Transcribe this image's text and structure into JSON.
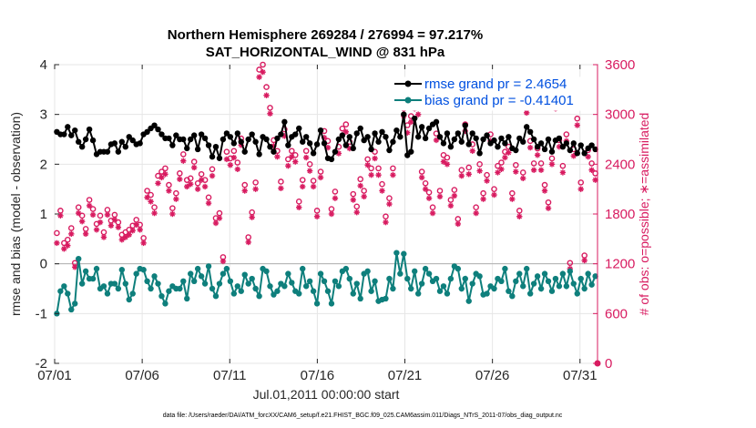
{
  "chart_data": {
    "type": "line",
    "title_line1": "Northern Hemisphere 269284 / 276994 = 97.217%",
    "title_line2": "SAT_HORIZONTAL_WIND @ 831 hPa",
    "xlabel": "Jul.01,2011 00:00:00 start",
    "ylabel_left": "rmse and bias (model - observation)",
    "ylabel_right": "# of obs: o=possible; ∗=assimilated",
    "footer": "data file: /Users/raeder/DAI/ATM_forcXX/CAM6_setup/f.e21.FHIST_BGC.f09_025.CAM6assim.011/Diags_NTrS_2011-07/obs_diag_output.nc",
    "x_ticks": [
      "07/01",
      "07/06",
      "07/11",
      "07/16",
      "07/21",
      "07/26",
      "07/31"
    ],
    "x_tick_days": [
      0,
      5,
      10,
      15,
      20,
      25,
      30
    ],
    "xlim": [
      0,
      31
    ],
    "ylim_left": [
      -2,
      4
    ],
    "y_ticks_left": [
      "-2",
      "-1",
      "0",
      "1",
      "2",
      "3",
      "4"
    ],
    "ylim_right": [
      0,
      3600
    ],
    "y_ticks_right": [
      "0",
      "600",
      "1200",
      "1800",
      "2400",
      "3000",
      "3600"
    ],
    "series": [
      {
        "name": "rmse grand",
        "legend_label": "rmse grand pr = 2.4654",
        "color": "#000000",
        "marker": "filled-circle",
        "values": [
          2.65,
          2.6,
          2.6,
          2.75,
          2.58,
          2.68,
          2.45,
          2.35,
          2.5,
          2.7,
          2.48,
          2.2,
          2.25,
          2.25,
          2.25,
          2.4,
          2.42,
          2.25,
          2.45,
          2.35,
          2.55,
          2.48,
          2.4,
          2.42,
          2.6,
          2.65,
          2.72,
          2.78,
          2.7,
          2.6,
          2.52,
          2.52,
          2.38,
          2.58,
          2.5,
          2.5,
          2.32,
          2.5,
          2.58,
          2.3,
          2.6,
          2.52,
          2.38,
          2.15,
          2.35,
          2.12,
          2.5,
          2.62,
          2.55,
          2.42,
          2.62,
          2.45,
          2.25,
          2.5,
          2.6,
          2.45,
          2.2,
          2.55,
          2.5,
          2.35,
          2.25,
          2.52,
          2.6,
          2.85,
          2.38,
          2.55,
          2.6,
          2.72,
          2.45,
          2.55,
          2.42,
          2.22,
          2.4,
          2.68,
          2.42,
          2.12,
          2.1,
          2.25,
          2.5,
          2.58,
          2.38,
          2.55,
          2.32,
          2.62,
          2.72,
          2.48,
          2.55,
          2.3,
          2.62,
          2.45,
          2.65,
          2.55,
          2.28,
          2.45,
          2.68,
          2.55,
          3.0,
          2.18,
          2.25,
          2.92,
          2.55,
          2.75,
          2.52,
          2.72,
          2.8,
          2.85,
          2.55,
          2.42,
          2.62,
          2.35,
          2.5,
          2.62,
          2.45,
          2.78,
          2.4,
          2.62,
          2.52,
          2.22,
          2.5,
          2.58,
          2.42,
          2.48,
          2.35,
          2.52,
          2.42,
          2.55,
          2.32,
          2.28,
          2.52,
          2.45,
          2.75,
          2.65,
          2.5,
          2.35,
          2.42,
          2.3,
          2.5,
          2.25,
          2.48,
          2.52,
          2.35,
          2.42,
          2.28,
          2.42,
          2.22,
          2.38,
          2.22,
          2.32,
          2.38,
          2.3
        ]
      },
      {
        "name": "bias grand",
        "legend_label": "bias grand pr = -0.41401",
        "color": "#0e7f7c",
        "marker": "filled-circle",
        "values": [
          -1.0,
          -0.55,
          -0.45,
          -0.6,
          -0.92,
          -0.8,
          0.1,
          -0.4,
          -0.15,
          -0.3,
          -0.3,
          -0.1,
          -0.5,
          -0.45,
          -0.6,
          -0.4,
          -0.4,
          -0.5,
          -0.12,
          -0.4,
          -0.72,
          -0.6,
          -0.2,
          -0.1,
          -0.12,
          -0.35,
          -0.5,
          -0.25,
          -0.4,
          -0.65,
          -0.8,
          -0.55,
          -0.45,
          -0.5,
          -0.5,
          -0.35,
          -0.7,
          -0.2,
          -0.35,
          -0.1,
          -0.25,
          -0.4,
          -0.05,
          -0.5,
          -0.65,
          -0.4,
          -0.2,
          -0.1,
          -0.35,
          -0.6,
          -0.45,
          -0.55,
          -0.22,
          -0.4,
          -0.3,
          -0.5,
          -0.65,
          -0.1,
          -0.15,
          -0.45,
          -0.62,
          -0.55,
          -0.4,
          -0.45,
          -0.2,
          -0.38,
          -0.55,
          -0.6,
          -0.1,
          -0.45,
          -0.35,
          -0.55,
          -0.8,
          -0.2,
          -0.35,
          -0.55,
          -0.8,
          -0.35,
          -0.45,
          -0.15,
          -0.1,
          -0.3,
          -0.6,
          -0.4,
          -0.7,
          -0.2,
          -0.15,
          -0.55,
          -0.35,
          -0.75,
          -0.72,
          -0.7,
          -0.3,
          -0.5,
          0.22,
          -0.2,
          0.2,
          -0.3,
          -0.5,
          -0.15,
          -0.6,
          -0.4,
          -0.1,
          -0.2,
          -0.35,
          -0.3,
          -0.55,
          -0.45,
          -0.6,
          -0.3,
          -0.05,
          -0.1,
          -0.5,
          -0.3,
          -0.75,
          -0.4,
          -0.2,
          -0.25,
          -0.62,
          -0.6,
          -0.45,
          -0.5,
          -0.3,
          -0.35,
          -0.1,
          -0.55,
          -0.65,
          -0.35,
          -0.2,
          -0.45,
          -0.1,
          -0.6,
          -0.4,
          -0.25,
          -0.5,
          -0.2,
          -0.35,
          -0.55,
          -0.3,
          -0.45,
          -0.2,
          -0.45,
          -0.15,
          -0.4,
          -0.6,
          -0.3,
          -0.5,
          -0.2,
          -0.42,
          -0.25
        ]
      }
    ],
    "obs_series": {
      "color": "#d81b60",
      "possible_symbol": "o",
      "assimilated_symbol": "*",
      "possible": [
        1570,
        1840,
        1450,
        1490,
        1630,
        1210,
        1880,
        1780,
        1620,
        1970,
        1860,
        1680,
        1780,
        1580,
        1850,
        1720,
        1790,
        1700,
        1550,
        1580,
        1610,
        1660,
        1730,
        1670,
        1510,
        2080,
        2030,
        1880,
        2260,
        2310,
        2350,
        2150,
        1870,
        2050,
        2290,
        2520,
        2210,
        2230,
        2430,
        2170,
        2280,
        2210,
        2000,
        2340,
        1750,
        1810,
        1280,
        2550,
        2470,
        2560,
        2420,
        2710,
        2150,
        1520,
        1820,
        2180,
        3540,
        3600,
        3330,
        3080,
        2690,
        2560,
        2190,
        2820,
        2460,
        2560,
        2510,
        1950,
        2210,
        2560,
        2400,
        2200,
        1840,
        2310,
        2800,
        2680,
        1860,
        2070,
        2610,
        2830,
        2880,
        2670,
        2040,
        1890,
        2220,
        2080,
        2460,
        2350,
        2550,
        2350,
        2160,
        1770,
        1990,
        2350,
        3300,
        3250,
        3070,
        2870,
        2980,
        3160,
        3090,
        2310,
        2170,
        2060,
        1880,
        2770,
        2080,
        2510,
        2480,
        1970,
        2090,
        1740,
        2330,
        2880,
        2360,
        2640,
        1880,
        2400,
        2050,
        2270,
        2760,
        2100,
        2380,
        2420,
        2550,
        2610,
        2050,
        2390,
        1840,
        2300,
        3100,
        2680,
        2410,
        2590,
        2410,
        2150,
        1940,
        2470,
        3150,
        2690,
        2380,
        2760,
        1210,
        2580,
        2950,
        2180,
        1300,
        2570,
        2410,
        2290
      ],
      "assimilated": [
        1450,
        1780,
        1380,
        1420,
        1560,
        1160,
        1810,
        1710,
        1560,
        1900,
        1790,
        1610,
        1700,
        1520,
        1790,
        1660,
        1730,
        1640,
        1490,
        1520,
        1550,
        1600,
        1670,
        1610,
        1450,
        2000,
        1950,
        1810,
        2170,
        2240,
        2280,
        2080,
        1800,
        1980,
        2220,
        2440,
        2130,
        2160,
        2360,
        2100,
        2210,
        2130,
        1930,
        2260,
        1690,
        1750,
        1230,
        2460,
        2390,
        2480,
        2340,
        2630,
        2080,
        1460,
        1760,
        2100,
        3450,
        3510,
        3230,
        3010,
        2620,
        2490,
        2110,
        2740,
        2380,
        2490,
        2430,
        1880,
        2130,
        2480,
        2320,
        2130,
        1770,
        2240,
        2720,
        2600,
        1800,
        1990,
        2530,
        2750,
        2790,
        2590,
        1970,
        1820,
        2140,
        2010,
        2390,
        2270,
        2470,
        2270,
        2080,
        1700,
        1920,
        2270,
        3180,
        3160,
        2980,
        2780,
        2910,
        3070,
        3000,
        2240,
        2100,
        1990,
        1810,
        2690,
        2010,
        2430,
        2400,
        1900,
        2020,
        1680,
        2260,
        2800,
        2280,
        2560,
        1810,
        2320,
        1980,
        2200,
        2680,
        2030,
        2300,
        2340,
        2480,
        2540,
        1980,
        2310,
        1770,
        2230,
        3020,
        2600,
        2330,
        2510,
        2330,
        2080,
        1870,
        2400,
        3070,
        2610,
        2300,
        2680,
        1140,
        2500,
        2870,
        2100,
        1240,
        2490,
        2330,
        2210
      ]
    }
  }
}
